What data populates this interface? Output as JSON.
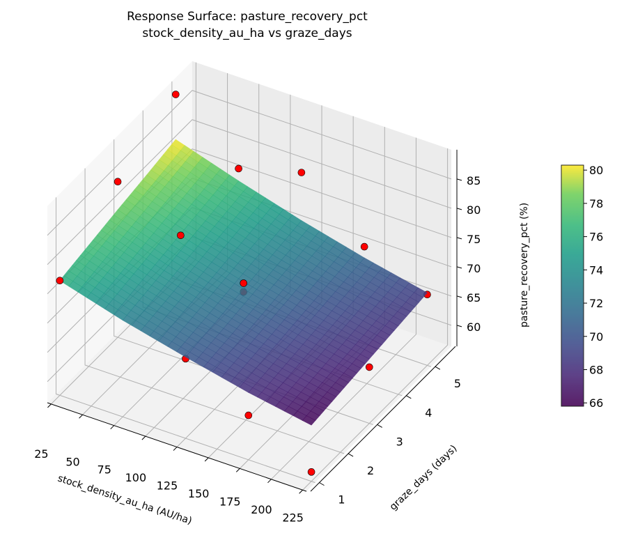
{
  "chart_data": {
    "type": "surface3d",
    "title": "Response Surface: pasture_recovery_pct",
    "subtitle": "stock_density_au_ha vs graze_days",
    "xlabel": "stock_density_au_ha (AU/ha)",
    "ylabel": "graze_days (days)",
    "zlabel": "pasture_recovery_pct (%)",
    "x_ticks": [
      25,
      50,
      75,
      100,
      125,
      150,
      175,
      200,
      225
    ],
    "y_ticks": [
      1,
      2,
      3,
      4,
      5
    ],
    "z_ticks": [
      60,
      65,
      70,
      75,
      80,
      85
    ],
    "xlim": [
      22,
      228
    ],
    "ylim": [
      0.7,
      5.7
    ],
    "zlim": [
      56.4,
      90
    ],
    "colormap": "viridis",
    "surface": {
      "x": [
        25,
        75,
        125,
        175,
        225
      ],
      "y": [
        1,
        2,
        3,
        4,
        5
      ],
      "z": [
        [
          76.0,
          77.1,
          78.2,
          79.2,
          80.3
        ],
        [
          72.9,
          73.9,
          74.9,
          75.9,
          76.9
        ],
        [
          70.3,
          71.1,
          72.0,
          72.9,
          73.8
        ],
        [
          67.9,
          68.7,
          69.5,
          70.3,
          71.1
        ],
        [
          66.0,
          66.7,
          67.4,
          68.1,
          68.8
        ]
      ]
    },
    "points": {
      "color": "#ff0000",
      "x": [
        25,
        25,
        25,
        75,
        75,
        125,
        125,
        125,
        125,
        175,
        175,
        225,
        225,
        225
      ],
      "y": [
        1,
        3,
        5,
        3,
        5,
        1,
        3,
        3,
        5,
        1,
        5,
        1,
        3,
        5
      ],
      "z": [
        76.0,
        83.0,
        88.0,
        77.5,
        79.0,
        70.0,
        73.0,
        71.5,
        82.0,
        64.0,
        73.0,
        58.0,
        66.0,
        68.5
      ]
    },
    "colorbar": {
      "ticks": [
        66,
        68,
        70,
        72,
        74,
        76,
        78,
        80
      ],
      "range": [
        65.8,
        80.3
      ]
    }
  }
}
